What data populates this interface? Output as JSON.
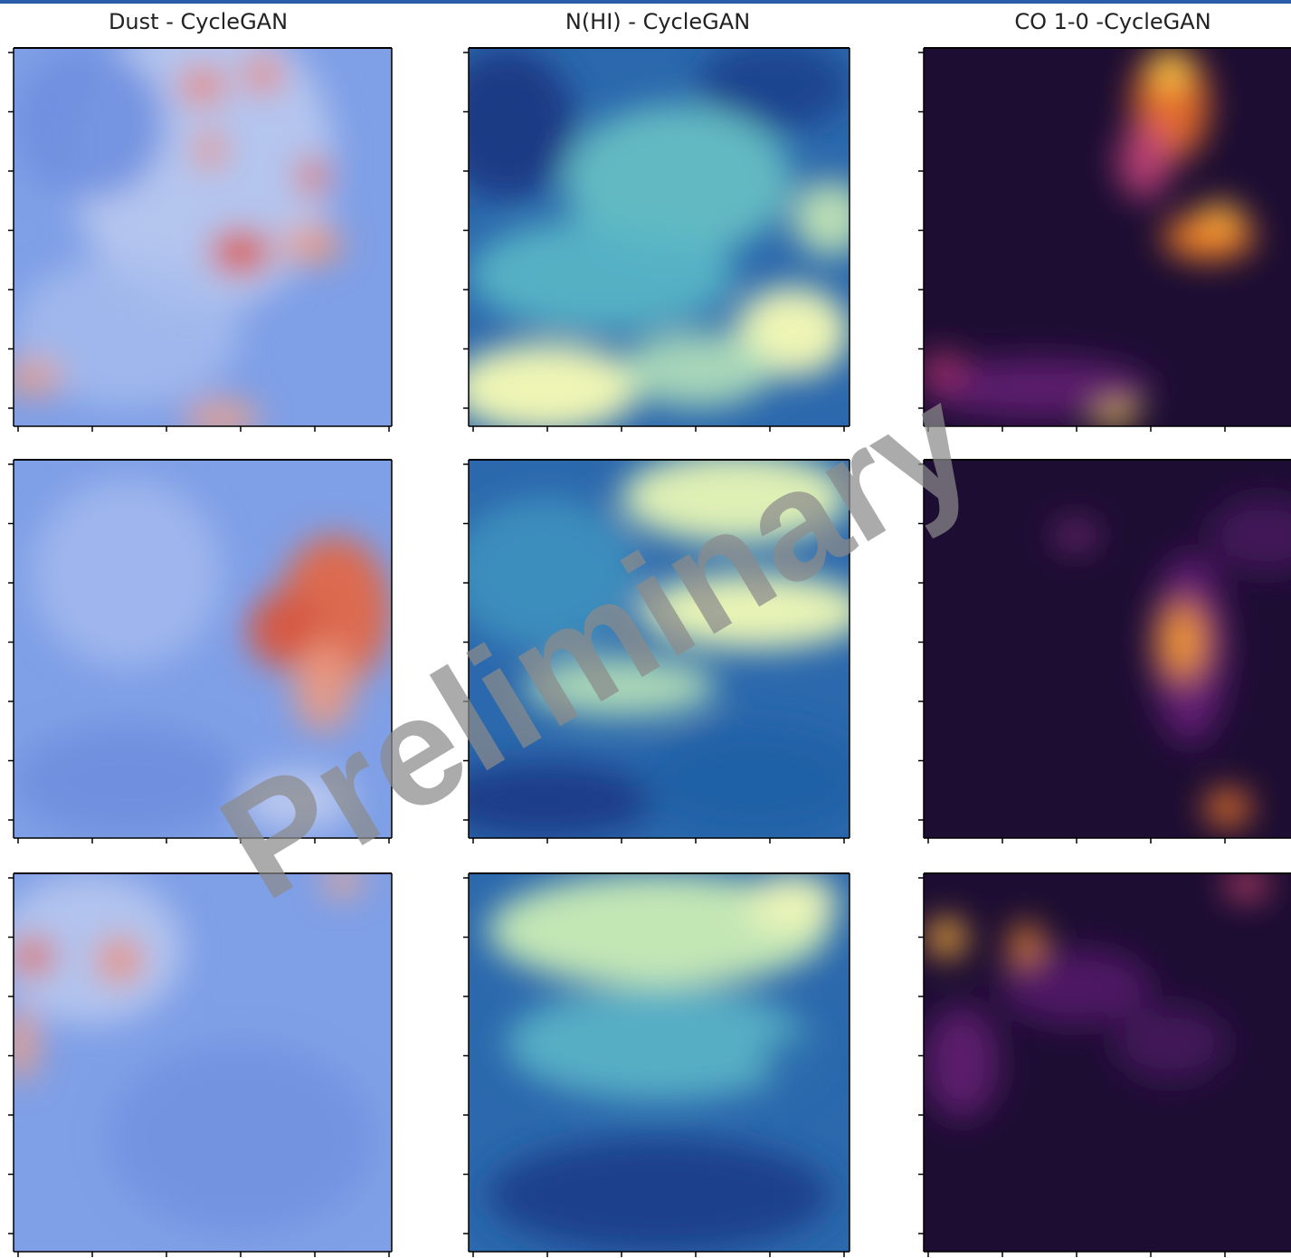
{
  "columns": [
    {
      "title": "Dust - CycleGAN"
    },
    {
      "title": "N(HI) - CycleGAN"
    },
    {
      "title": "CO 1-0 -CycleGAN"
    }
  ],
  "watermark": "Preliminary"
}
